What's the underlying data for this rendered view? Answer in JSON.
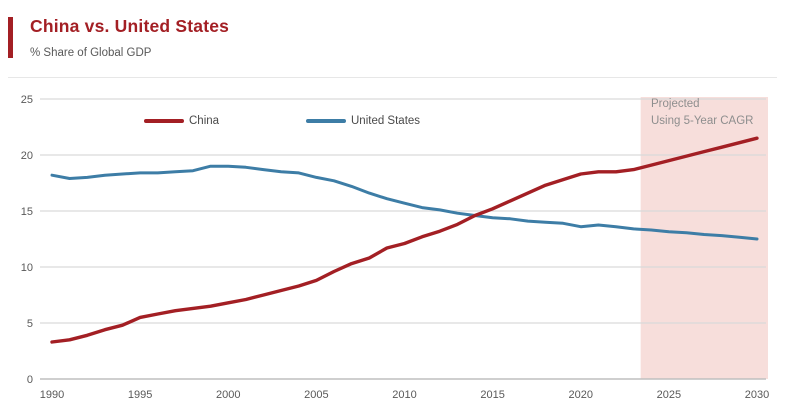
{
  "header": {
    "title": "China vs. United States",
    "subtitle": "% Share of Global GDP"
  },
  "legend": [
    {
      "label": "China",
      "color": "#A31F24"
    },
    {
      "label": "United States",
      "color": "#3D7DA6"
    }
  ],
  "annotation": {
    "line1": "Projected",
    "line2": "Using 5-Year CAGR"
  },
  "colors": {
    "accent": "#A31F24",
    "axis_text": "#595959",
    "grid": "#D9D9D9",
    "axis_line": "#BFBFBF",
    "annotation_text": "#8E8E8E",
    "projection_fill": "#F7DEDB"
  },
  "chart_data": {
    "type": "line",
    "title": "China vs. United States",
    "subtitle": "% Share of Global GDP",
    "xlabel": "",
    "ylabel": "% Share of Global GDP",
    "grid": true,
    "legend_position": "top-inside",
    "ylim": [
      0,
      25
    ],
    "yticks": [
      0,
      5,
      10,
      15,
      20,
      25
    ],
    "xticks": [
      1990,
      1995,
      2000,
      2005,
      2010,
      2015,
      2020,
      2025,
      2030
    ],
    "x": [
      1990,
      1991,
      1992,
      1993,
      1994,
      1995,
      1996,
      1997,
      1998,
      1999,
      2000,
      2001,
      2002,
      2003,
      2004,
      2005,
      2006,
      2007,
      2008,
      2009,
      2010,
      2011,
      2012,
      2013,
      2014,
      2015,
      2016,
      2017,
      2018,
      2019,
      2020,
      2021,
      2022,
      2023,
      2024,
      2025,
      2026,
      2027,
      2028,
      2029,
      2030
    ],
    "series": [
      {
        "name": "China",
        "color": "#A31F24",
        "values": [
          3.3,
          3.5,
          3.9,
          4.4,
          4.8,
          5.5,
          5.8,
          6.1,
          6.3,
          6.5,
          6.8,
          7.1,
          7.5,
          7.9,
          8.3,
          8.8,
          9.6,
          10.3,
          10.8,
          11.7,
          12.1,
          12.7,
          13.2,
          13.8,
          14.6,
          15.2,
          15.9,
          16.6,
          17.3,
          17.8,
          18.3,
          18.5,
          18.5,
          18.7,
          19.1,
          19.5,
          19.9,
          20.3,
          20.7,
          21.1,
          21.5
        ]
      },
      {
        "name": "United States",
        "color": "#3D7DA6",
        "values": [
          18.2,
          17.9,
          18.0,
          18.2,
          18.3,
          18.4,
          18.4,
          18.5,
          18.6,
          19.0,
          19.0,
          18.9,
          18.7,
          18.5,
          18.4,
          18.0,
          17.7,
          17.2,
          16.6,
          16.1,
          15.7,
          15.3,
          15.1,
          14.8,
          14.6,
          14.4,
          14.3,
          14.1,
          14.0,
          13.9,
          13.6,
          13.75,
          13.6,
          13.4,
          13.3,
          13.15,
          13.05,
          12.9,
          12.8,
          12.65,
          12.5
        ]
      }
    ],
    "projection": {
      "start_year": 2023.4,
      "end_year": 2030,
      "label": "Projected Using 5-Year CAGR",
      "fill": "#F7DEDB"
    }
  }
}
